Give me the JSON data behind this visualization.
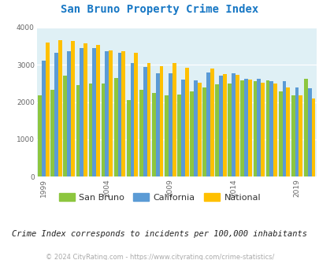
{
  "title": "San Bruno Property Crime Index",
  "subtitle": "Crime Index corresponds to incidents per 100,000 inhabitants",
  "footer": "© 2024 CityRating.com - https://www.cityrating.com/crime-statistics/",
  "years": [
    1999,
    2000,
    2001,
    2002,
    2003,
    2004,
    2005,
    2006,
    2007,
    2008,
    2009,
    2010,
    2011,
    2012,
    2013,
    2014,
    2015,
    2016,
    2017,
    2018,
    2019,
    2020
  ],
  "san_bruno": [
    2180,
    2330,
    2700,
    2460,
    2490,
    2490,
    2650,
    2060,
    2330,
    2250,
    2190,
    2200,
    2290,
    2390,
    2470,
    2490,
    2570,
    2550,
    2570,
    2290,
    2190,
    2620
  ],
  "california": [
    3100,
    3310,
    3360,
    3450,
    3450,
    3370,
    3310,
    3050,
    2940,
    2760,
    2770,
    2600,
    2570,
    2790,
    2700,
    2760,
    2620,
    2630,
    2560,
    2550,
    2380,
    2360
  ],
  "national": [
    3600,
    3660,
    3640,
    3580,
    3530,
    3380,
    3360,
    3320,
    3050,
    2960,
    3040,
    2920,
    2510,
    2900,
    2740,
    2720,
    2600,
    2510,
    2490,
    2400,
    2190,
    2100
  ],
  "san_bruno_color": "#8dc63f",
  "california_color": "#5b9bd5",
  "national_color": "#ffc000",
  "bg_color": "#dff0f5",
  "title_color": "#1777c4",
  "subtitle_color": "#222222",
  "footer_color": "#aaaaaa",
  "tick_color": "#666666",
  "ylim": [
    0,
    4000
  ],
  "yticks": [
    0,
    1000,
    2000,
    3000,
    4000
  ],
  "xtick_years": [
    1999,
    2004,
    2009,
    2014,
    2019
  ]
}
